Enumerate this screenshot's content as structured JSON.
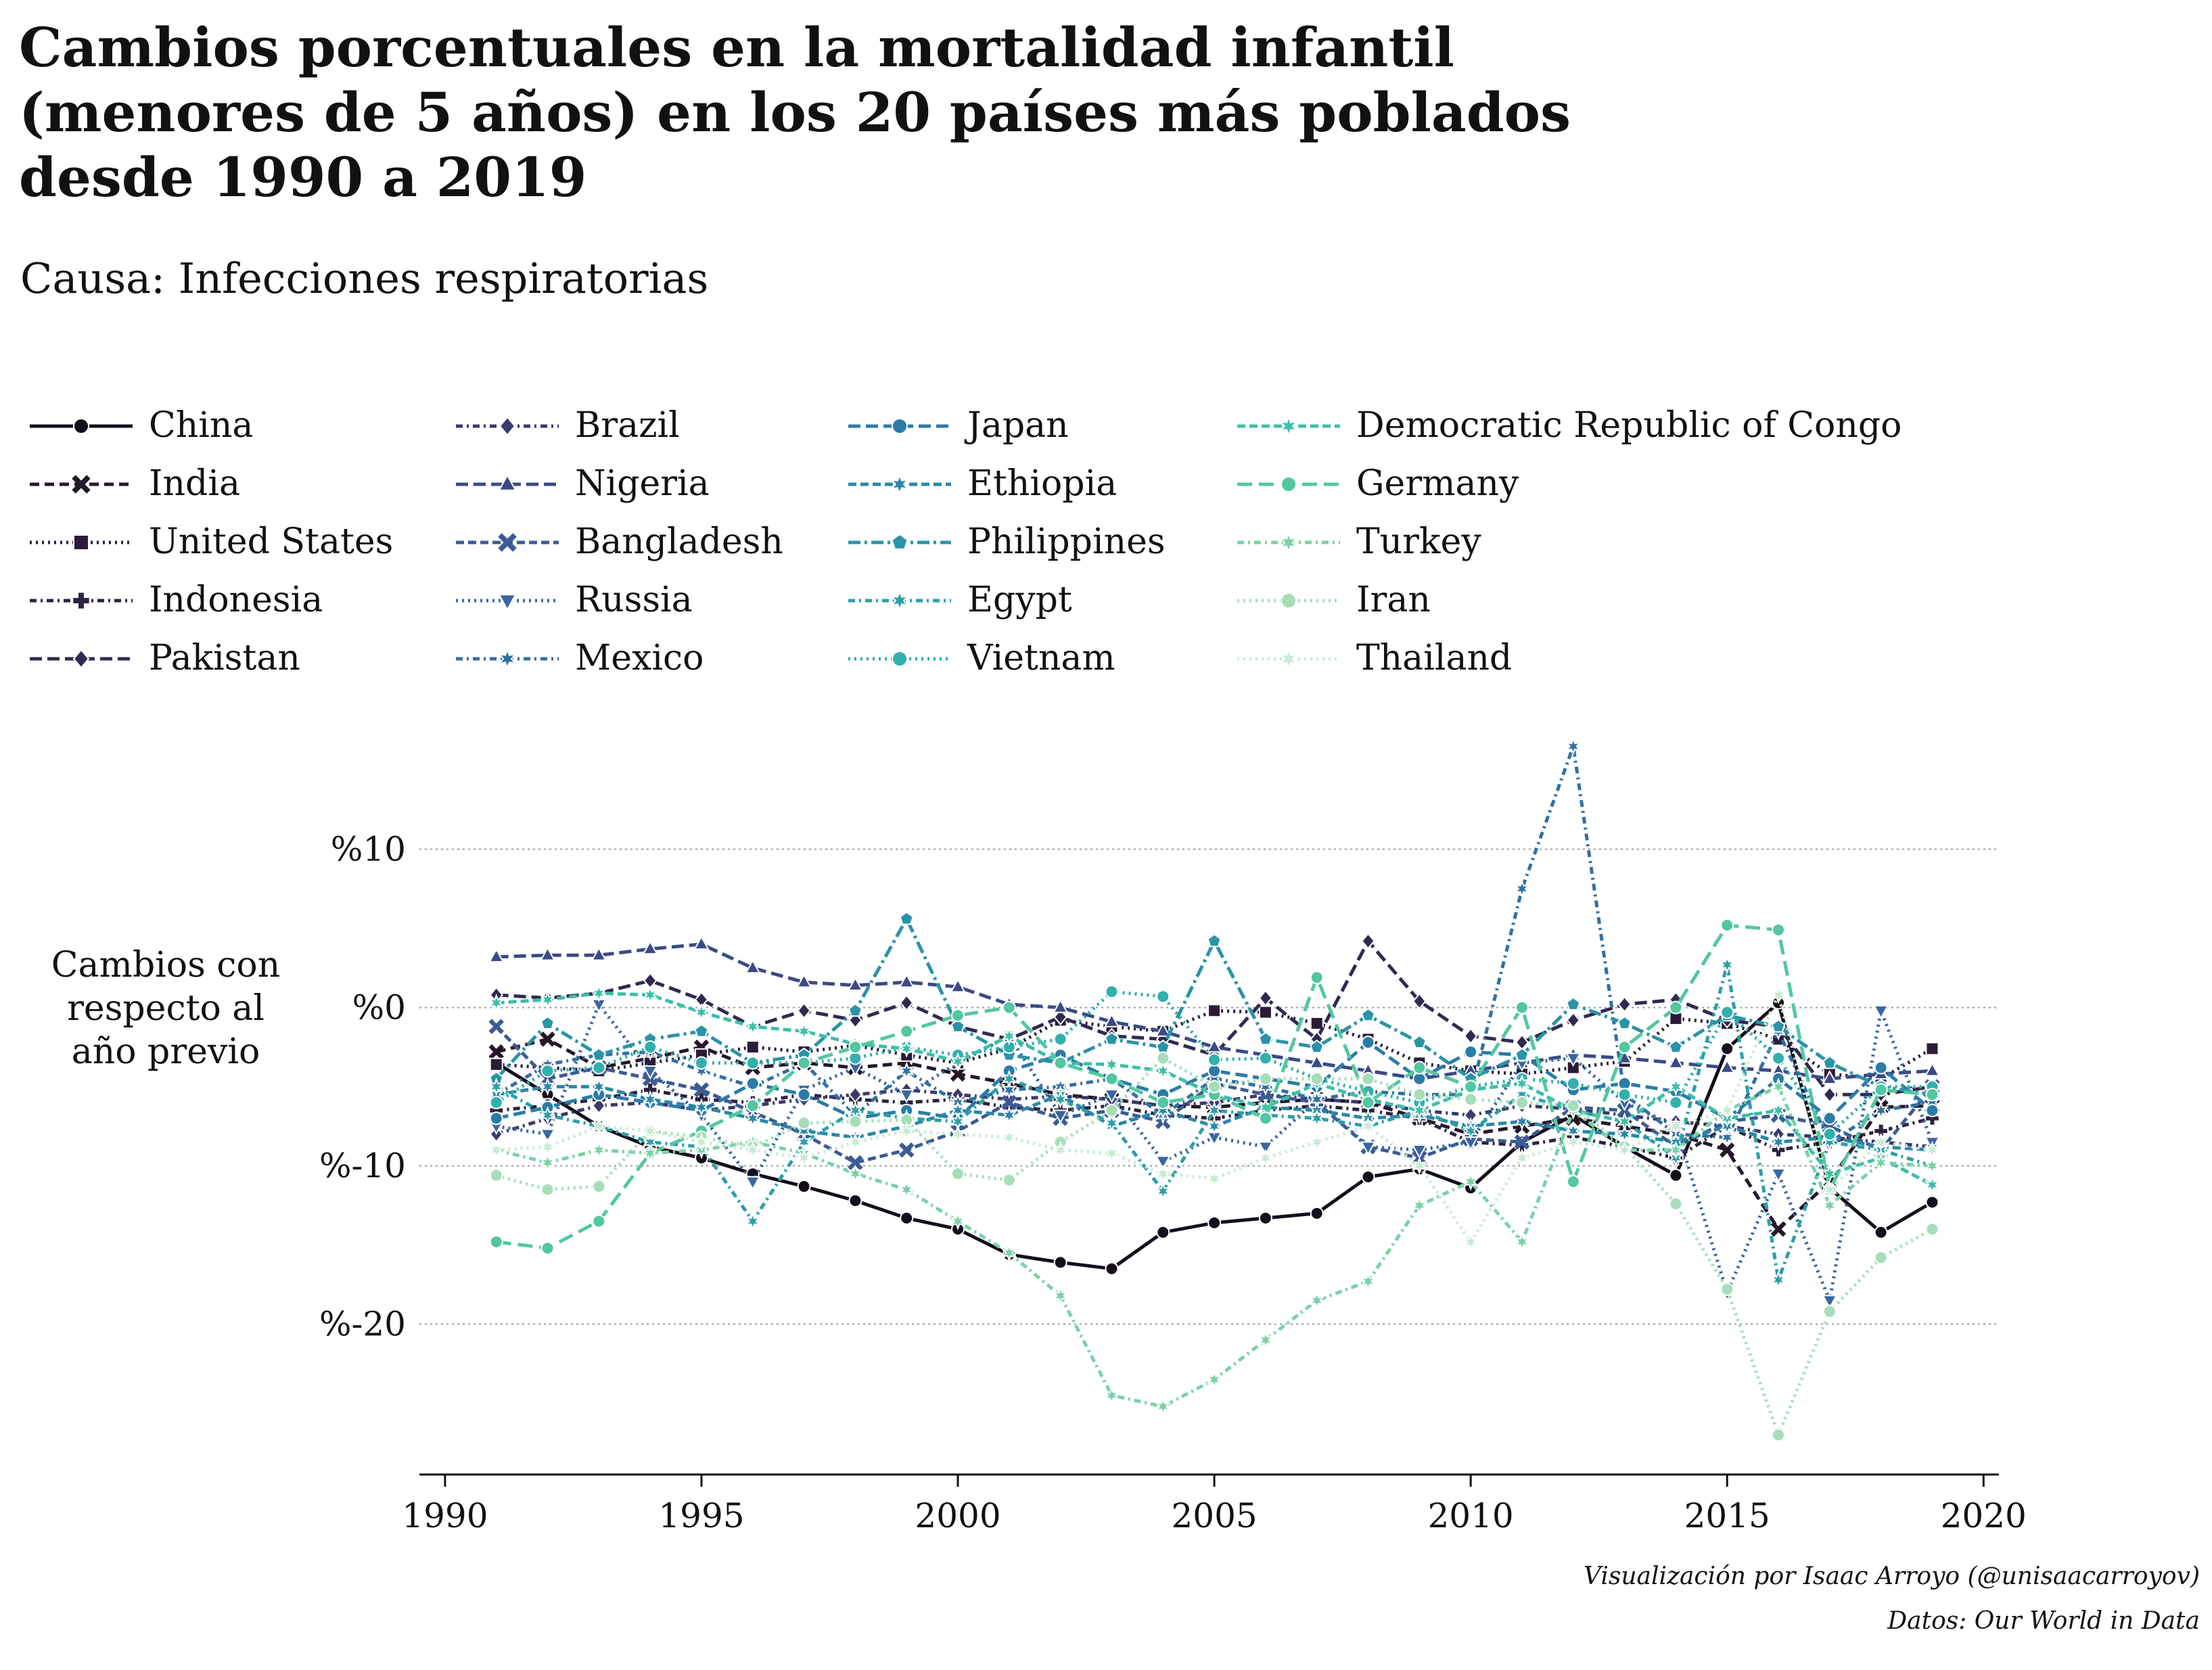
{
  "title_lines": [
    "Cambios porcentuales en la mortalidad infantil",
    "(menores de 5 años) en los 20 países más poblados",
    "desde 1990 a 2019"
  ],
  "subtitle": "Causa: Infecciones respiratorias",
  "ylabel_lines": [
    "Cambios con",
    "respecto al",
    "año previo"
  ],
  "credits": [
    "Visualización por Isaac Arroyo (@unisaacarroyov)",
    "Datos: Our World in Data"
  ],
  "chart_data": {
    "type": "line",
    "title": "Cambios porcentuales en la mortalidad infantil (menores de 5 años) en los 20 países más poblados desde 1990 a 2019",
    "subtitle": "Causa: Infecciones respiratorias",
    "xlabel": "",
    "ylabel": "Cambios con respecto al año previo",
    "xlim": [
      1989.5,
      2020.3
    ],
    "ylim": [
      -29.5,
      17.5
    ],
    "xticks": [
      1990,
      1995,
      2000,
      2005,
      2010,
      2015,
      2020
    ],
    "xtick_labels": [
      "1990",
      "1995",
      "2000",
      "2005",
      "2010",
      "2015",
      "2020"
    ],
    "yticks": [
      10,
      0,
      -10,
      -20
    ],
    "ytick_labels": [
      "%10",
      "%0",
      "%-10",
      "%-20"
    ],
    "grid": "y-dotted",
    "legend": "top",
    "x": [
      1991,
      1992,
      1993,
      1994,
      1995,
      1996,
      1997,
      1998,
      1999,
      2000,
      2001,
      2002,
      2003,
      2004,
      2005,
      2006,
      2007,
      2008,
      2009,
      2010,
      2011,
      2012,
      2013,
      2014,
      2015,
      2016,
      2017,
      2018,
      2019
    ],
    "series": [
      {
        "name": "China",
        "color": "#140e1a",
        "dash": "",
        "marker": "circle",
        "values": [
          -3.5,
          -5.5,
          -7.5,
          -8.8,
          -9.5,
          -10.5,
          -11.3,
          -12.2,
          -13.3,
          -14,
          -15.6,
          -16.1,
          -16.5,
          -14.2,
          -13.6,
          -13.3,
          -13,
          -10.7,
          -10.2,
          -11.4,
          -8.5,
          -6.8,
          -8.8,
          -10.6,
          -2.6,
          0.3,
          -11.4,
          -14.2,
          -12.3
        ]
      },
      {
        "name": "India",
        "color": "#231728",
        "dash": "14 8",
        "marker": "x",
        "values": [
          -2.8,
          -2,
          -3.8,
          -3.2,
          -2.5,
          -3.8,
          -3.5,
          -3.8,
          -3.5,
          -4.2,
          -4.8,
          -5.5,
          -5.8,
          -6.2,
          -6.3,
          -6,
          -5.8,
          -6,
          -7,
          -8,
          -7.5,
          -7,
          -7.5,
          -8,
          -9,
          -14,
          -11,
          -6.3,
          -6.2
        ]
      },
      {
        "name": "United States",
        "color": "#2a1c38",
        "dash": "3 6",
        "marker": "square",
        "values": [
          -3.6,
          -3.8,
          -4,
          -3.5,
          -3,
          -2.5,
          -2.8,
          -2.4,
          -3,
          -3.5,
          -2.6,
          -0.8,
          -1.2,
          -1.5,
          -0.2,
          -0.3,
          -1,
          -2,
          -3.5,
          -4,
          -4.2,
          -3.8,
          -3.4,
          -0.7,
          -1,
          -2,
          -4.2,
          -4.5,
          -2.6
        ]
      },
      {
        "name": "Indonesia",
        "color": "#2d2241",
        "dash": "10 6 3 6",
        "marker": "plus",
        "values": [
          -6.5,
          -6.2,
          -5.8,
          -5.2,
          -5.8,
          -6,
          -5.5,
          -5.8,
          -6,
          -5.8,
          -6.3,
          -6.5,
          -6.2,
          -6.8,
          -7,
          -6.5,
          -6.2,
          -6.5,
          -7,
          -8.5,
          -8.7,
          -8.2,
          -8.8,
          -9.5,
          -7.5,
          -9,
          -8.5,
          -7.8,
          -7
        ]
      },
      {
        "name": "Pakistan",
        "color": "#302a52",
        "dash": "18 8",
        "marker": "diamond",
        "values": [
          0.8,
          0.6,
          0.9,
          1.7,
          0.5,
          -1.2,
          -0.2,
          -0.8,
          0.3,
          -1.2,
          -2,
          -0.6,
          -1.8,
          -2,
          -3,
          0.6,
          -2,
          4.2,
          0.4,
          -1.8,
          -2.2,
          -0.8,
          0.2,
          0.5,
          -0.8,
          -1.2,
          -5.5,
          -5.5,
          -5
        ]
      },
      {
        "name": "Brazil",
        "color": "#3a3a6e",
        "dash": "10 6 3 6",
        "marker": "diamond",
        "values": [
          -8,
          -7,
          -6.2,
          -6,
          -6.5,
          -6.2,
          -5.8,
          -5.5,
          -5.2,
          -5.5,
          -5.8,
          -5.6,
          -5.8,
          -6.2,
          -6,
          -5.5,
          -5.8,
          -6,
          -6.5,
          -6.8,
          -6.2,
          -6.4,
          -6.8,
          -7.2,
          -7.5,
          -8,
          -8.2,
          -8.5,
          -8.8
        ]
      },
      {
        "name": "Nigeria",
        "color": "#3b4a85",
        "dash": "18 8",
        "marker": "triangle",
        "values": [
          3.2,
          3.3,
          3.3,
          3.7,
          4,
          2.5,
          1.6,
          1.4,
          1.6,
          1.3,
          0.2,
          0,
          -0.9,
          -1.5,
          -2.5,
          -3,
          -3.5,
          -4,
          -4.5,
          -4,
          -3.5,
          -3,
          -3.2,
          -3.5,
          -3.8,
          -4,
          -4.5,
          -4.2,
          -4
        ]
      },
      {
        "name": "Bangladesh",
        "color": "#3c5a95",
        "dash": "12 6",
        "marker": "x",
        "values": [
          -1.2,
          -4.5,
          -3.8,
          -4.5,
          -5.2,
          -6.6,
          -8,
          -9.8,
          -9,
          -7.8,
          -6,
          -7,
          -6.5,
          -7.2,
          -4.8,
          -5.5,
          -6,
          -8.8,
          -9.5,
          -8.3,
          -8.5,
          -6.3,
          -6.5,
          -8.8,
          -7.2,
          -6.8,
          -7.5,
          -9,
          -5
        ]
      },
      {
        "name": "Russia",
        "color": "#3a66a0",
        "dash": "3 6",
        "marker": "triangle-down",
        "values": [
          -7.5,
          -8,
          0.2,
          -4,
          -6.8,
          -11,
          -5.2,
          -3.8,
          -5.5,
          -3.5,
          -1.8,
          -6.8,
          -5.5,
          -9.7,
          -8.2,
          -8.8,
          -5.8,
          -8.8,
          -9,
          -8.5,
          -3.5,
          -3.2,
          -6,
          -7.5,
          -18,
          -10.5,
          -18.5,
          -0.2,
          -8.5
        ]
      },
      {
        "name": "Mexico",
        "color": "#3270a2",
        "dash": "10 6 3 6",
        "marker": "star",
        "values": [
          -5.5,
          -3.6,
          -3,
          -2.8,
          -4,
          -5,
          -3.5,
          -6.8,
          -4,
          -6,
          -5.2,
          -5,
          -4.5,
          -6.8,
          -4.5,
          -5,
          -5.8,
          -5.3,
          -5.5,
          -5.5,
          7.5,
          16.5,
          -5.5,
          -8,
          -8.2,
          -1.5,
          -8.5,
          -6.5,
          -6
        ]
      },
      {
        "name": "Japan",
        "color": "#2b7ba8",
        "dash": "18 8",
        "marker": "circle",
        "values": [
          -7,
          -6.3,
          -5.5,
          -6,
          -6.5,
          -4.8,
          -5.5,
          -7,
          -6.5,
          -7,
          -4,
          -3,
          -4.5,
          -5.5,
          -4,
          -4.5,
          -5,
          -2.2,
          -4.5,
          -2.8,
          -3,
          -5.2,
          -4.8,
          -5.3,
          -7,
          -4.5,
          -7,
          -3.8,
          -6.5
        ]
      },
      {
        "name": "Ethiopia",
        "color": "#2a87a8",
        "dash": "12 6",
        "marker": "star",
        "values": [
          -5.5,
          -5,
          -5,
          -5.8,
          -6.3,
          -7,
          -7.8,
          -8.2,
          -7.5,
          -6.5,
          -6.8,
          -5.5,
          -7.5,
          -6.5,
          -7.5,
          -6.3,
          -6.5,
          -7,
          -6.8,
          -7.5,
          -7.2,
          -7.8,
          -8,
          -8.5,
          -7.5,
          -8.5,
          -8.2,
          -8.8,
          -9
        ]
      },
      {
        "name": "Philippines",
        "color": "#2a93a8",
        "dash": "18 6 4 6",
        "marker": "pentagon",
        "values": [
          -4.5,
          -1,
          -3,
          -2,
          -1.5,
          -3.5,
          -3,
          -0.2,
          5.6,
          -1.2,
          -3,
          -3.5,
          -2,
          -2.5,
          4.2,
          -2,
          -2.5,
          -0.5,
          -2.2,
          -4.5,
          -3,
          0.2,
          -1,
          -2.5,
          -0.5,
          -1.2,
          -3.5,
          -5,
          -5.5
        ]
      },
      {
        "name": "Egypt",
        "color": "#2ba0a8",
        "dash": "10 6 3 6",
        "marker": "star",
        "values": [
          -5,
          -6.8,
          -7.5,
          -8.5,
          -8.8,
          -13.5,
          -8.5,
          -6.5,
          -7,
          -7.2,
          -4.5,
          -5.8,
          -7.3,
          -11.6,
          -6.5,
          -6.8,
          -7,
          -7.5,
          -6.5,
          -7.8,
          -5.5,
          -6.5,
          -7.2,
          -9.5,
          2.7,
          -17.2,
          -8.5,
          -9,
          -10
        ]
      },
      {
        "name": "Vietnam",
        "color": "#31b0ad",
        "dash": "3 6",
        "marker": "circle",
        "values": [
          -6,
          -4,
          -3.8,
          -2.5,
          -3.5,
          -3.5,
          -3.5,
          -3.2,
          -2.5,
          -3,
          -2.5,
          -2,
          1,
          0.7,
          -3.3,
          -3.2,
          -4.5,
          -5.3,
          -6,
          -5,
          -4.5,
          -4.8,
          -5.5,
          -6,
          -0.3,
          -3.2,
          -8,
          -5,
          -5
        ]
      },
      {
        "name": "Democratic Republic of Congo",
        "color": "#3cbfa8",
        "dash": "12 6",
        "marker": "star",
        "values": [
          0.3,
          0.5,
          0.9,
          0.8,
          -0.3,
          -1.2,
          -1.5,
          -2.3,
          -2.6,
          -3.4,
          -1.8,
          -3.5,
          -3.6,
          -4,
          -5.5,
          -6.3,
          -4.8,
          -5.8,
          -6.5,
          -5.2,
          -4.8,
          -6.5,
          -7.2,
          -5,
          -7,
          -6.5,
          -10.5,
          -9.5,
          -11.2
        ]
      },
      {
        "name": "Germany",
        "color": "#52c7a0",
        "dash": "22 10",
        "marker": "circle",
        "values": [
          -14.8,
          -15.2,
          -13.5,
          -9.2,
          -7.8,
          -6.2,
          -3.5,
          -2.5,
          -1.5,
          -0.5,
          0,
          -3.5,
          -4.5,
          -6,
          -5.5,
          -7,
          1.9,
          -6,
          -3.8,
          -5,
          0,
          -11,
          -2.5,
          0,
          5.2,
          4.9,
          -11.5,
          -5.2,
          -5.5
        ]
      },
      {
        "name": "Turkey",
        "color": "#79d2a6",
        "dash": "10 6 3 6",
        "marker": "star",
        "values": [
          -9,
          -9.8,
          -9,
          -9.2,
          -9,
          -8.5,
          -9.2,
          -10.5,
          -11.5,
          -13.5,
          -15.5,
          -18.2,
          -24.5,
          -25.2,
          -23.5,
          -21,
          -18.5,
          -17.3,
          -12.5,
          -11,
          -14.8,
          -6.5,
          -9,
          -9,
          -6.5,
          -5,
          -12.5,
          -9.8,
          -10
        ]
      },
      {
        "name": "Iran",
        "color": "#a6deb8",
        "dash": "3 6",
        "marker": "circle",
        "values": [
          -10.6,
          -11.5,
          -11.3,
          -7.8,
          -8.2,
          -8.8,
          -7.3,
          -7.2,
          -7.1,
          -10.5,
          -10.9,
          -8.5,
          -6.5,
          -3.2,
          -5,
          -4.5,
          -4.5,
          -4.5,
          -5.5,
          -5.8,
          -6,
          -6.2,
          -8.8,
          -12.4,
          -17.8,
          -27,
          -19.2,
          -15.8,
          -14
        ]
      },
      {
        "name": "Thailand",
        "color": "#c8ebd2",
        "dash": "3 6",
        "marker": "star",
        "values": [
          -9,
          -8.8,
          -7.5,
          -7.8,
          -8.5,
          -9,
          -9.5,
          -8.5,
          -7.8,
          -8,
          -8.2,
          -9,
          -9.2,
          -10.5,
          -10.8,
          -9.5,
          -8.5,
          -7.5,
          -10,
          -14.8,
          -9.5,
          -8.5,
          -9,
          -7.5,
          -6.5,
          0.8,
          -11.5,
          -8.5,
          -9
        ]
      }
    ]
  }
}
